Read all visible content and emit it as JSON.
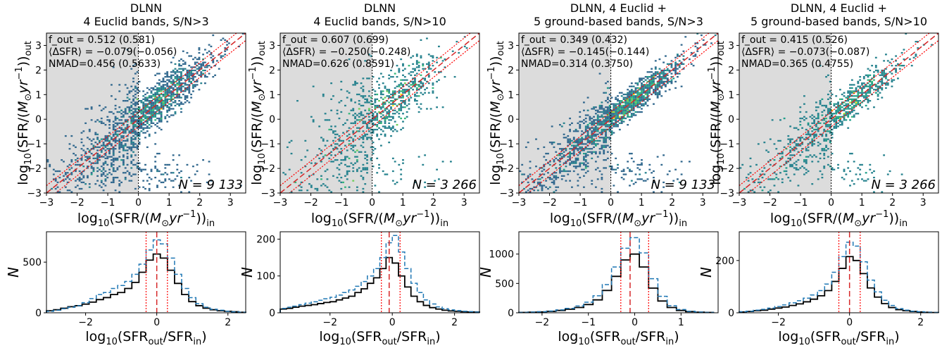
{
  "chart_data": [
    {
      "type": "heatmap",
      "title": [
        "DLNN",
        "4 Euclid bands, S/N>3"
      ],
      "xlabel": "log10(SFR/(M⊙yr−1))in",
      "ylabel": "log10(SFR/(M⊙yr−1))out",
      "xlim": [
        -3,
        3.5
      ],
      "ylim": [
        -3,
        3.5
      ],
      "xticks": [
        -3,
        -2,
        -1,
        0,
        1,
        2,
        3
      ],
      "yticks": [
        -3,
        -2,
        -1,
        0,
        1,
        2,
        3
      ],
      "stats": [
        "f_out = 0.512 (0.581)",
        "⟨ΔSFR⟩ = −0.079(−0.056)",
        "NMAD=0.456 (0.5633)"
      ],
      "n_label": "N = 9 133",
      "shaded_region": {
        "x": [
          -3,
          0
        ]
      },
      "one_to_one_line": true,
      "dotted_offsets": [
        -0.3,
        0.3
      ],
      "hist": {
        "type": "histogram",
        "xlabel": "log10(SFRout/SFRin)",
        "ylabel": "N",
        "xlim": [
          -3.1,
          2.5
        ],
        "ylim": [
          0,
          800
        ],
        "xticks": [
          -2,
          0,
          2
        ],
        "yticks": [
          0,
          500
        ],
        "vlines": {
          "median": 0,
          "offsets": [
            -0.3,
            0.3
          ]
        },
        "series": [
          {
            "style": "solid",
            "color": "#000000",
            "bins": [
              -3.1,
              -2.9,
              -2.7,
              -2.5,
              -2.3,
              -2.1,
              -1.9,
              -1.7,
              -1.5,
              -1.3,
              -1.1,
              -0.9,
              -0.7,
              -0.5,
              -0.3,
              -0.1,
              0.1,
              0.3,
              0.5,
              0.7,
              0.9,
              1.1,
              1.3,
              1.5,
              1.7,
              1.9,
              2.1,
              2.3,
              2.5
            ],
            "counts": [
              20,
              30,
              45,
              60,
              70,
              85,
              105,
              130,
              150,
              180,
              200,
              240,
              300,
              400,
              520,
              580,
              540,
              420,
              290,
              180,
              110,
              70,
              45,
              30,
              20,
              15,
              10,
              5
            ]
          },
          {
            "style": "dashed",
            "color": "#1f77b4",
            "bins": [
              -3.1,
              -2.9,
              -2.7,
              -2.5,
              -2.3,
              -2.1,
              -1.9,
              -1.7,
              -1.5,
              -1.3,
              -1.1,
              -0.9,
              -0.7,
              -0.5,
              -0.3,
              -0.1,
              0.1,
              0.3,
              0.5,
              0.7,
              0.9,
              1.1,
              1.3,
              1.5,
              1.7,
              1.9,
              2.1,
              2.3,
              2.5
            ],
            "counts": [
              15,
              25,
              40,
              55,
              70,
              100,
              140,
              180,
              200,
              240,
              270,
              310,
              380,
              480,
              620,
              720,
              680,
              540,
              380,
              240,
              150,
              90,
              55,
              35,
              25,
              15,
              10,
              5
            ]
          }
        ]
      }
    },
    {
      "type": "heatmap",
      "title": [
        "DLNN",
        "4 Euclid bands, S/N>10"
      ],
      "xlabel": "log10(SFR/(M⊙yr−1))in",
      "ylabel": "log10(SFR/(M⊙yr−1))out",
      "xlim": [
        -3,
        3.5
      ],
      "ylim": [
        -3,
        3.5
      ],
      "xticks": [
        -3,
        -2,
        -1,
        0,
        1,
        2,
        3
      ],
      "yticks": [
        -3,
        -2,
        -1,
        0,
        1,
        2,
        3
      ],
      "stats": [
        "f_out = 0.607 (0.699)",
        "⟨ΔSFR⟩ = −0.250(−0.248)",
        "NMAD=0.626 (0.8591)"
      ],
      "n_label": "N = 3 266",
      "shaded_region": {
        "x": [
          -3,
          0
        ]
      },
      "one_to_one_line": true,
      "dotted_offsets": [
        -0.3,
        0.3
      ],
      "hist": {
        "type": "histogram",
        "xlabel": "log10(SFRout/SFRin)",
        "ylabel": "N",
        "xlim": [
          -3.6,
          2.8
        ],
        "ylim": [
          0,
          220
        ],
        "xticks": [
          -2,
          0,
          2
        ],
        "yticks": [
          0,
          100,
          200
        ],
        "vlines": {
          "median": -0.1,
          "offsets": [
            -0.35,
            0.25
          ]
        },
        "series": [
          {
            "style": "solid",
            "color": "#000000",
            "bins": [
              -3.6,
              -3.4,
              -3.2,
              -3.0,
              -2.8,
              -2.6,
              -2.4,
              -2.2,
              -2.0,
              -1.8,
              -1.6,
              -1.4,
              -1.2,
              -1.0,
              -0.8,
              -0.6,
              -0.4,
              -0.2,
              0.0,
              0.2,
              0.4,
              0.6,
              0.8,
              1.0,
              1.2,
              1.4,
              1.6,
              1.8,
              2.0,
              2.2,
              2.4,
              2.6,
              2.8
            ],
            "counts": [
              10,
              12,
              15,
              18,
              20,
              22,
              25,
              28,
              30,
              35,
              40,
              45,
              55,
              65,
              80,
              95,
              120,
              150,
              135,
              100,
              70,
              45,
              30,
              20,
              14,
              10,
              7,
              5,
              4,
              3,
              2,
              2
            ]
          },
          {
            "style": "dashed",
            "color": "#1f77b4",
            "bins": [
              -3.6,
              -3.4,
              -3.2,
              -3.0,
              -2.8,
              -2.6,
              -2.4,
              -2.2,
              -2.0,
              -1.8,
              -1.6,
              -1.4,
              -1.2,
              -1.0,
              -0.8,
              -0.6,
              -0.4,
              -0.2,
              0.0,
              0.2,
              0.4,
              0.6,
              0.8,
              1.0,
              1.2,
              1.4,
              1.6,
              1.8,
              2.0,
              2.2,
              2.4,
              2.6,
              2.8
            ],
            "counts": [
              12,
              15,
              18,
              22,
              26,
              30,
              34,
              38,
              42,
              48,
              55,
              62,
              72,
              85,
              100,
              120,
              150,
              190,
              210,
              165,
              120,
              80,
              55,
              35,
              24,
              16,
              11,
              8,
              6,
              4,
              3,
              2
            ]
          }
        ]
      }
    },
    {
      "type": "heatmap",
      "title": [
        "DLNN, 4 Euclid +",
        "5 ground-based bands, S/N>3"
      ],
      "xlabel": "log10(SFR/(M⊙yr−1))in",
      "ylabel": "log10(SFR/(M⊙yr−1))out",
      "xlim": [
        -3,
        3.5
      ],
      "ylim": [
        -3,
        3.5
      ],
      "xticks": [
        -3,
        -2,
        -1,
        0,
        1,
        2,
        3
      ],
      "yticks": [
        -3,
        -2,
        -1,
        0,
        1,
        2,
        3
      ],
      "stats": [
        "f_out = 0.349 (0.432)",
        "⟨ΔSFR⟩ = −0.145(−0.144)",
        "NMAD=0.314 (0.3750)"
      ],
      "n_label": "N = 9 133",
      "shaded_region": {
        "x": [
          -3,
          0
        ]
      },
      "one_to_one_line": true,
      "dotted_offsets": [
        -0.3,
        0.3
      ],
      "hist": {
        "type": "histogram",
        "xlabel": "log10(SFRout/SFRin)",
        "ylabel": "N",
        "xlim": [
          -2.5,
          1.8
        ],
        "ylim": [
          0,
          1380
        ],
        "xticks": [
          -2,
          -1,
          0,
          1
        ],
        "yticks": [
          0,
          500,
          1000
        ],
        "vlines": {
          "median": -0.1,
          "offsets": [
            -0.3,
            0.3
          ]
        },
        "series": [
          {
            "style": "solid",
            "color": "#000000",
            "bins": [
              -2.5,
              -2.3,
              -2.1,
              -1.9,
              -1.7,
              -1.5,
              -1.3,
              -1.1,
              -0.9,
              -0.7,
              -0.5,
              -0.3,
              -0.1,
              0.1,
              0.3,
              0.5,
              0.7,
              0.9,
              1.1,
              1.3,
              1.5,
              1.7
            ],
            "counts": [
              5,
              10,
              15,
              25,
              40,
              60,
              90,
              140,
              220,
              380,
              620,
              900,
              1000,
              780,
              420,
              200,
              90,
              40,
              20,
              10,
              5
            ]
          },
          {
            "style": "dashed",
            "color": "#1f77b4",
            "bins": [
              -2.5,
              -2.3,
              -2.1,
              -1.9,
              -1.7,
              -1.5,
              -1.3,
              -1.1,
              -0.9,
              -0.7,
              -0.5,
              -0.3,
              -0.1,
              0.1,
              0.3,
              0.5,
              0.7,
              0.9,
              1.1,
              1.3,
              1.5,
              1.7
            ],
            "counts": [
              6,
              12,
              18,
              30,
              50,
              75,
              115,
              180,
              290,
              480,
              780,
              1100,
              1280,
              1020,
              580,
              280,
              120,
              55,
              25,
              12,
              6
            ]
          }
        ]
      }
    },
    {
      "type": "heatmap",
      "title": [
        "DLNN, 4 Euclid +",
        "5 ground-based bands, S/N>10"
      ],
      "xlabel": "log10(SFR/(M⊙yr−1))in",
      "ylabel": "log10(SFR/(M⊙yr−1))out",
      "xlim": [
        -3,
        3.5
      ],
      "ylim": [
        -3,
        3.5
      ],
      "xticks": [
        -3,
        -2,
        -1,
        0,
        1,
        2,
        3
      ],
      "yticks": [
        -3,
        -2,
        -1,
        0,
        1,
        2,
        3
      ],
      "stats": [
        "f_out = 0.415 (0.526)",
        "⟨ΔSFR⟩ = −0.073(−0.087)",
        "NMAD=0.365 (0.4755)"
      ],
      "n_label": "N = 3 266",
      "shaded_region": {
        "x": [
          -3,
          0
        ]
      },
      "one_to_one_line": true,
      "dotted_offsets": [
        -0.3,
        0.3
      ],
      "hist": {
        "type": "histogram",
        "xlabel": "log10(SFRout/SFRin)",
        "ylabel": "N",
        "xlim": [
          -3.1,
          2.5
        ],
        "ylim": [
          0,
          310
        ],
        "xticks": [
          -2,
          0,
          2
        ],
        "yticks": [
          0,
          200
        ],
        "vlines": {
          "median": 0,
          "offsets": [
            -0.3,
            0.3
          ]
        },
        "series": [
          {
            "style": "solid",
            "color": "#000000",
            "bins": [
              -3.1,
              -2.9,
              -2.7,
              -2.5,
              -2.3,
              -2.1,
              -1.9,
              -1.7,
              -1.5,
              -1.3,
              -1.1,
              -0.9,
              -0.7,
              -0.5,
              -0.3,
              -0.1,
              0.1,
              0.3,
              0.5,
              0.7,
              0.9,
              1.1,
              1.3,
              1.5,
              1.7,
              1.9,
              2.1,
              2.3,
              2.5
            ],
            "counts": [
              3,
              5,
              8,
              10,
              14,
              18,
              22,
              28,
              34,
              42,
              52,
              65,
              85,
              120,
              170,
              215,
              200,
              150,
              95,
              60,
              35,
              20,
              12,
              8,
              5,
              3,
              2,
              1
            ]
          },
          {
            "style": "dashed",
            "color": "#1f77b4",
            "bins": [
              -3.1,
              -2.9,
              -2.7,
              -2.5,
              -2.3,
              -2.1,
              -1.9,
              -1.7,
              -1.5,
              -1.3,
              -1.1,
              -0.9,
              -0.7,
              -0.5,
              -0.3,
              -0.1,
              0.1,
              0.3,
              0.5,
              0.7,
              0.9,
              1.1,
              1.3,
              1.5,
              1.7,
              1.9,
              2.1,
              2.3,
              2.5
            ],
            "counts": [
              4,
              6,
              10,
              13,
              18,
              24,
              30,
              38,
              46,
              56,
              68,
              85,
              110,
              155,
              215,
              270,
              255,
              195,
              125,
              80,
              48,
              28,
              16,
              10,
              6,
              4,
              2,
              1
            ]
          }
        ]
      }
    }
  ]
}
